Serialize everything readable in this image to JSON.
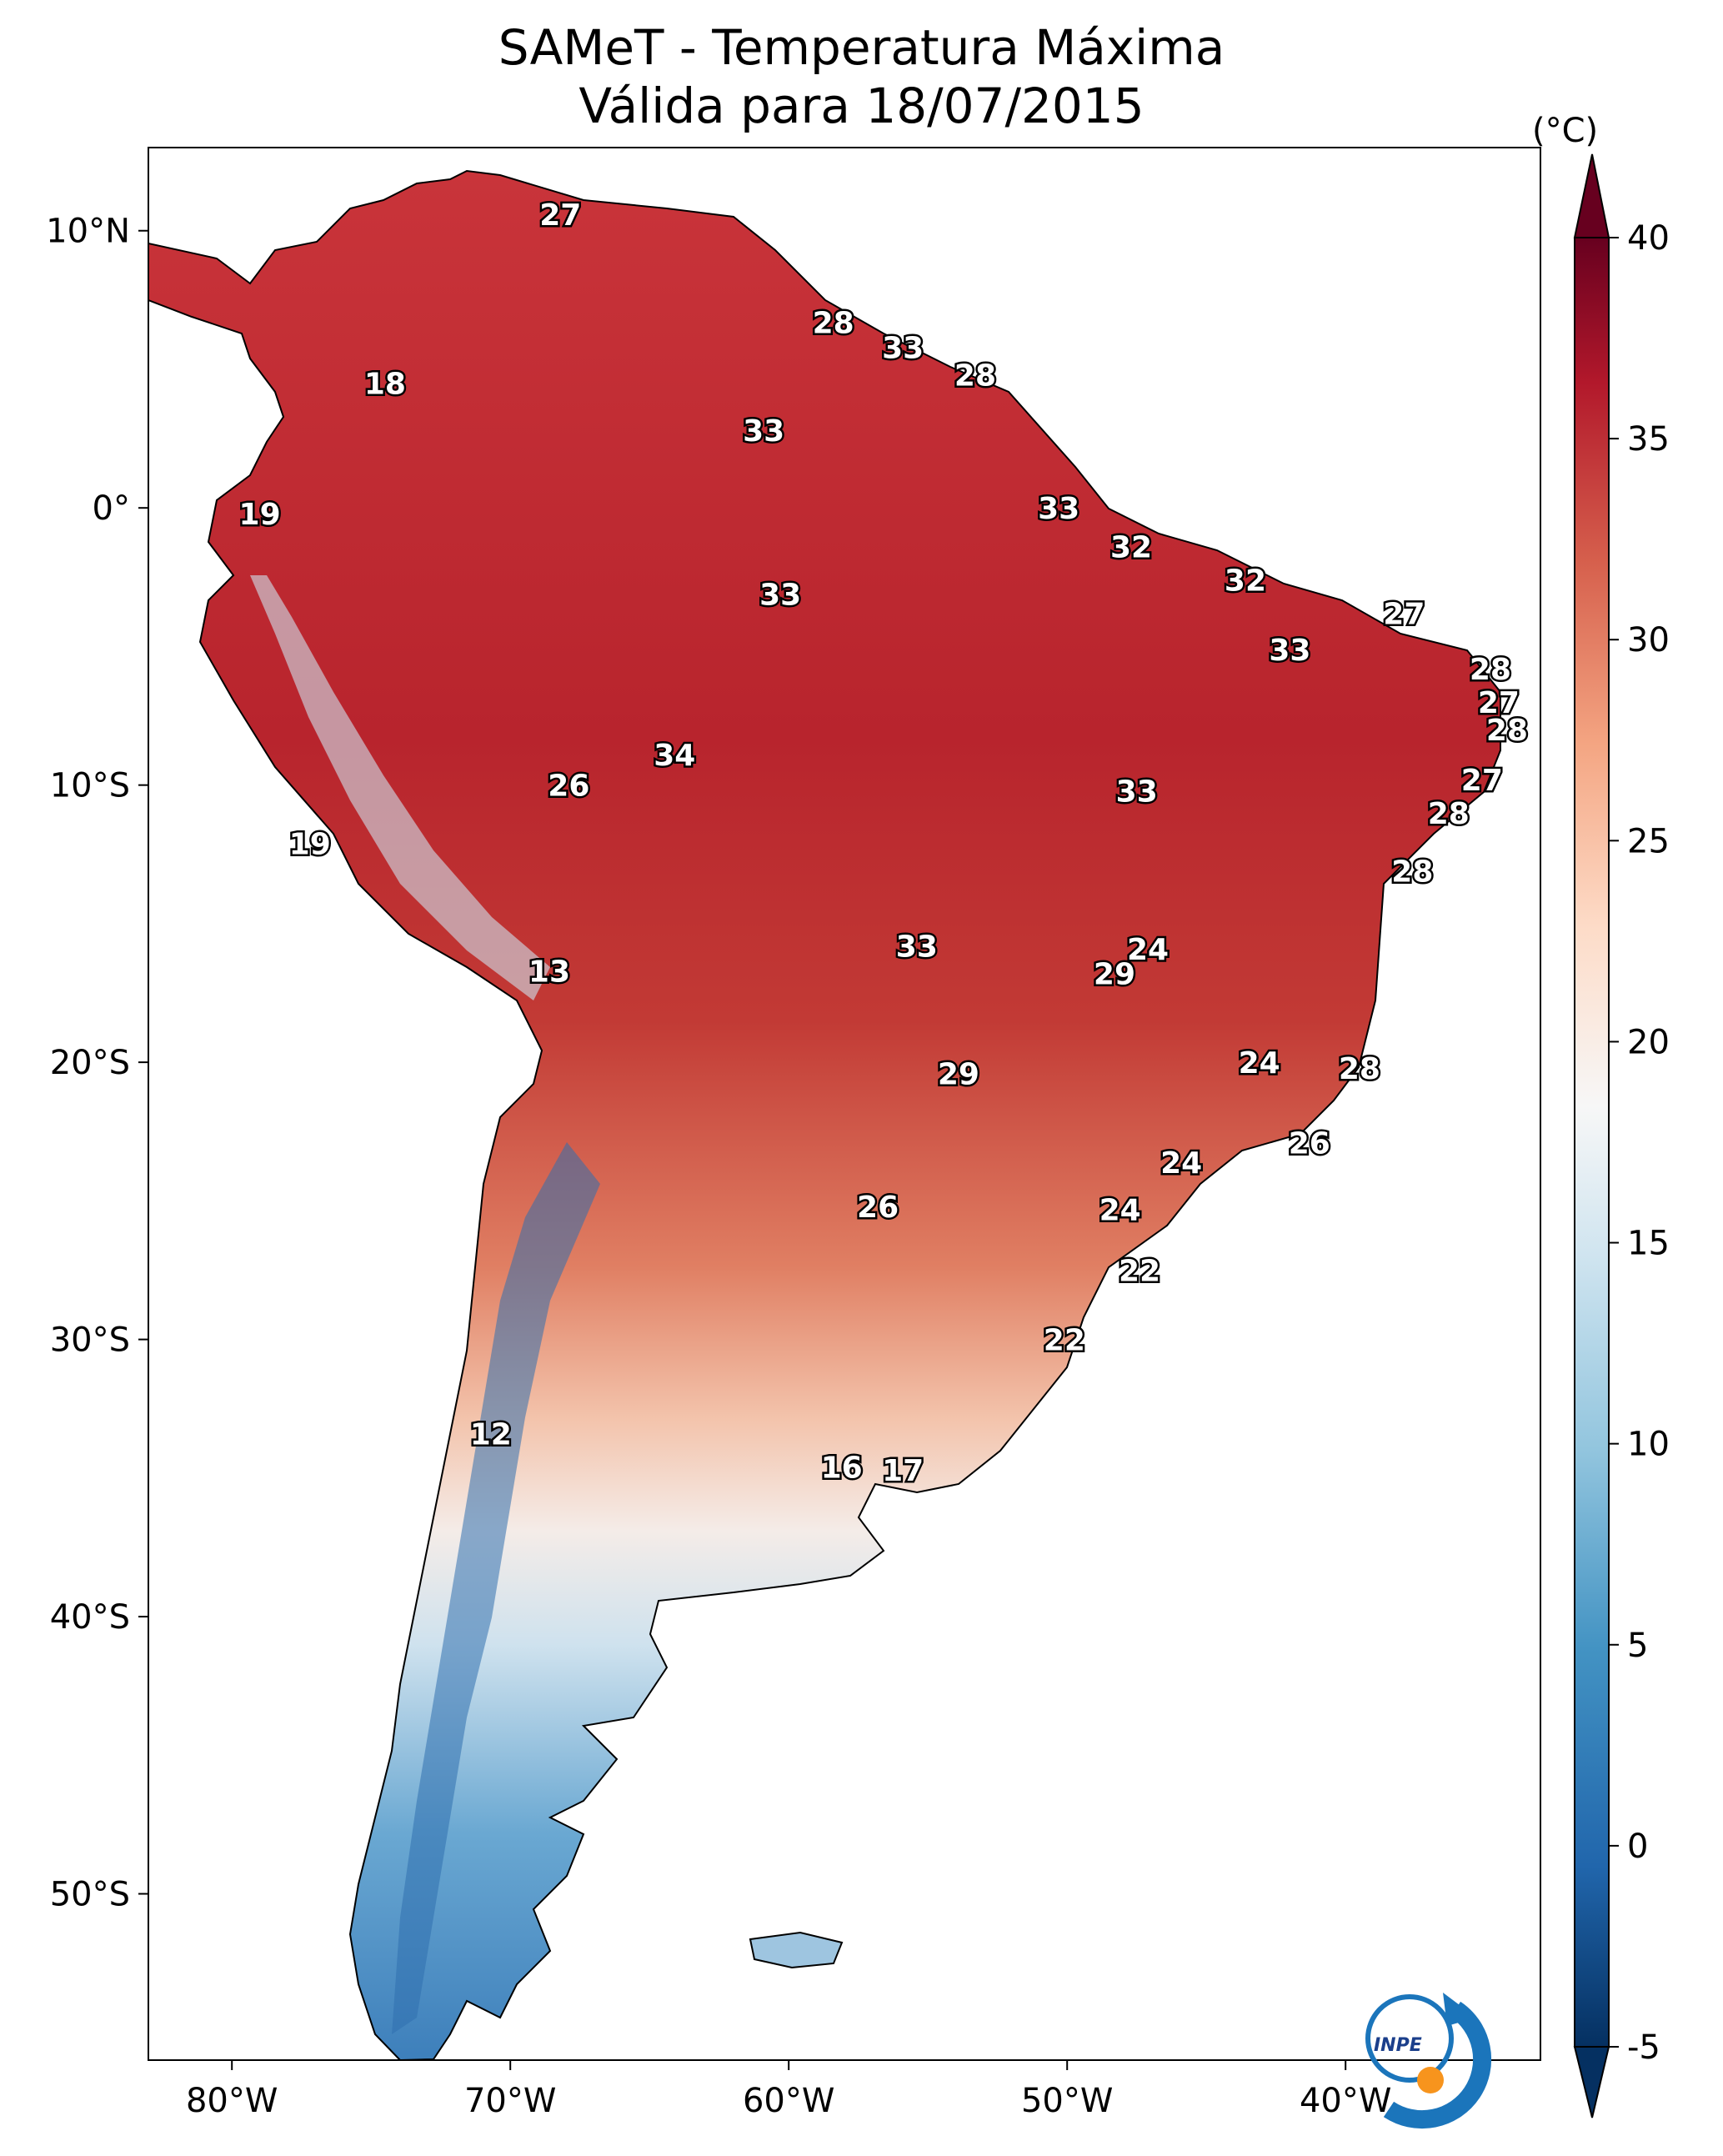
{
  "title": {
    "line1": "SAMeT - Temperatura Máxima",
    "line2": "Válida para 18/07/2015"
  },
  "axes": {
    "lon_ticks": [
      "80°W",
      "70°W",
      "60°W",
      "50°W",
      "40°W"
    ],
    "lat_ticks": [
      "10°N",
      "0°",
      "10°S",
      "20°S",
      "30°S",
      "40°S",
      "50°S"
    ],
    "extent": {
      "lon_min": -83,
      "lon_max": -33,
      "lat_min": -56,
      "lat_max": 13
    }
  },
  "colorbar": {
    "unit": "(°C)",
    "ticks": [
      "40",
      "35",
      "30",
      "25",
      "20",
      "15",
      "10",
      "5",
      "0",
      "-5"
    ],
    "range": [
      -5,
      40
    ],
    "colormap": "RdBu_r",
    "colors": {
      "warmest": "#67001f",
      "warm": "#d6604d",
      "mild": "#f4a582",
      "neutral": "#f7f7f7",
      "cool": "#92c5de",
      "cold": "#2166ac",
      "coldest": "#053061"
    }
  },
  "map_labels": [
    {
      "text": "27",
      "lon": -68.2,
      "lat": 10.6
    },
    {
      "text": "18",
      "lon": -74.5,
      "lat": 4.5
    },
    {
      "text": "28",
      "lon": -58.4,
      "lat": 6.7
    },
    {
      "text": "33",
      "lon": -55.9,
      "lat": 5.8
    },
    {
      "text": "28",
      "lon": -53.3,
      "lat": 4.8
    },
    {
      "text": "33",
      "lon": -60.9,
      "lat": 2.8
    },
    {
      "text": "19",
      "lon": -79.0,
      "lat": -0.2
    },
    {
      "text": "33",
      "lon": -50.3,
      "lat": 0.0
    },
    {
      "text": "32",
      "lon": -47.7,
      "lat": -1.4
    },
    {
      "text": "32",
      "lon": -43.6,
      "lat": -2.6
    },
    {
      "text": "33",
      "lon": -60.3,
      "lat": -3.1
    },
    {
      "text": "27",
      "lon": -37.9,
      "lat": -3.8
    },
    {
      "text": "33",
      "lon": -42.0,
      "lat": -5.1
    },
    {
      "text": "28",
      "lon": -34.8,
      "lat": -5.8
    },
    {
      "text": "27",
      "lon": -34.5,
      "lat": -7.0
    },
    {
      "text": "28",
      "lon": -34.2,
      "lat": -8.0
    },
    {
      "text": "34",
      "lon": -64.1,
      "lat": -8.9
    },
    {
      "text": "26",
      "lon": -67.9,
      "lat": -10.0
    },
    {
      "text": "33",
      "lon": -47.5,
      "lat": -10.2
    },
    {
      "text": "27",
      "lon": -35.1,
      "lat": -9.8
    },
    {
      "text": "28",
      "lon": -36.3,
      "lat": -11.0
    },
    {
      "text": "19",
      "lon": -77.2,
      "lat": -12.1
    },
    {
      "text": "28",
      "lon": -37.6,
      "lat": -13.1
    },
    {
      "text": "33",
      "lon": -55.4,
      "lat": -15.8
    },
    {
      "text": "24",
      "lon": -47.1,
      "lat": -15.9
    },
    {
      "text": "13",
      "lon": -68.6,
      "lat": -16.7
    },
    {
      "text": "29",
      "lon": -48.3,
      "lat": -16.8
    },
    {
      "text": "24",
      "lon": -43.1,
      "lat": -20.0
    },
    {
      "text": "28",
      "lon": -39.5,
      "lat": -20.2
    },
    {
      "text": "29",
      "lon": -53.9,
      "lat": -20.4
    },
    {
      "text": "26",
      "lon": -41.3,
      "lat": -22.9
    },
    {
      "text": "24",
      "lon": -45.9,
      "lat": -23.6
    },
    {
      "text": "26",
      "lon": -56.8,
      "lat": -25.2
    },
    {
      "text": "24",
      "lon": -48.1,
      "lat": -25.3
    },
    {
      "text": "22",
      "lon": -47.4,
      "lat": -27.5
    },
    {
      "text": "22",
      "lon": -50.1,
      "lat": -30.0
    },
    {
      "text": "12",
      "lon": -70.7,
      "lat": -33.4
    },
    {
      "text": "16",
      "lon": -58.1,
      "lat": -34.6
    },
    {
      "text": "17",
      "lon": -55.9,
      "lat": -34.7
    }
  ],
  "logo": {
    "text": "INPE"
  }
}
